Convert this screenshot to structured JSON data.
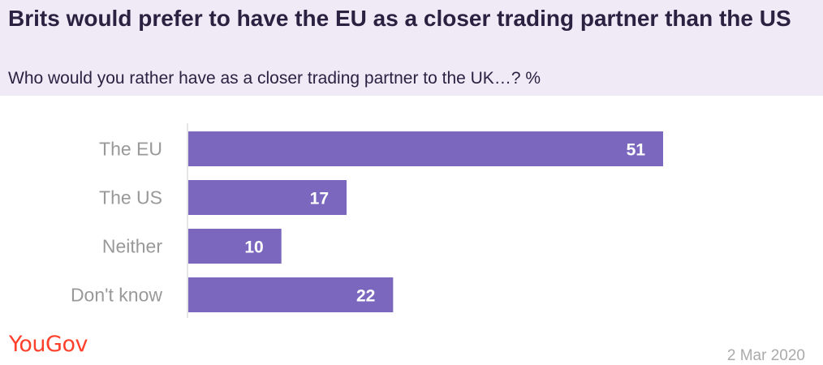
{
  "brand": {
    "name": "YouGov",
    "color": "#ff412c"
  },
  "date": "2 Mar 2020",
  "chart_data": {
    "type": "bar",
    "orientation": "horizontal",
    "title": "Brits would prefer to have the EU as a closer trading partner than the US",
    "subtitle": "Who would you rather have as a closer trading partner to the UK…? %",
    "categories": [
      "The EU",
      "The US",
      "Neither",
      "Don't know"
    ],
    "values": [
      51,
      17,
      10,
      22
    ],
    "xlim": [
      0,
      68
    ],
    "bar_color": "#7b68be",
    "grid": false,
    "legend": "none"
  }
}
